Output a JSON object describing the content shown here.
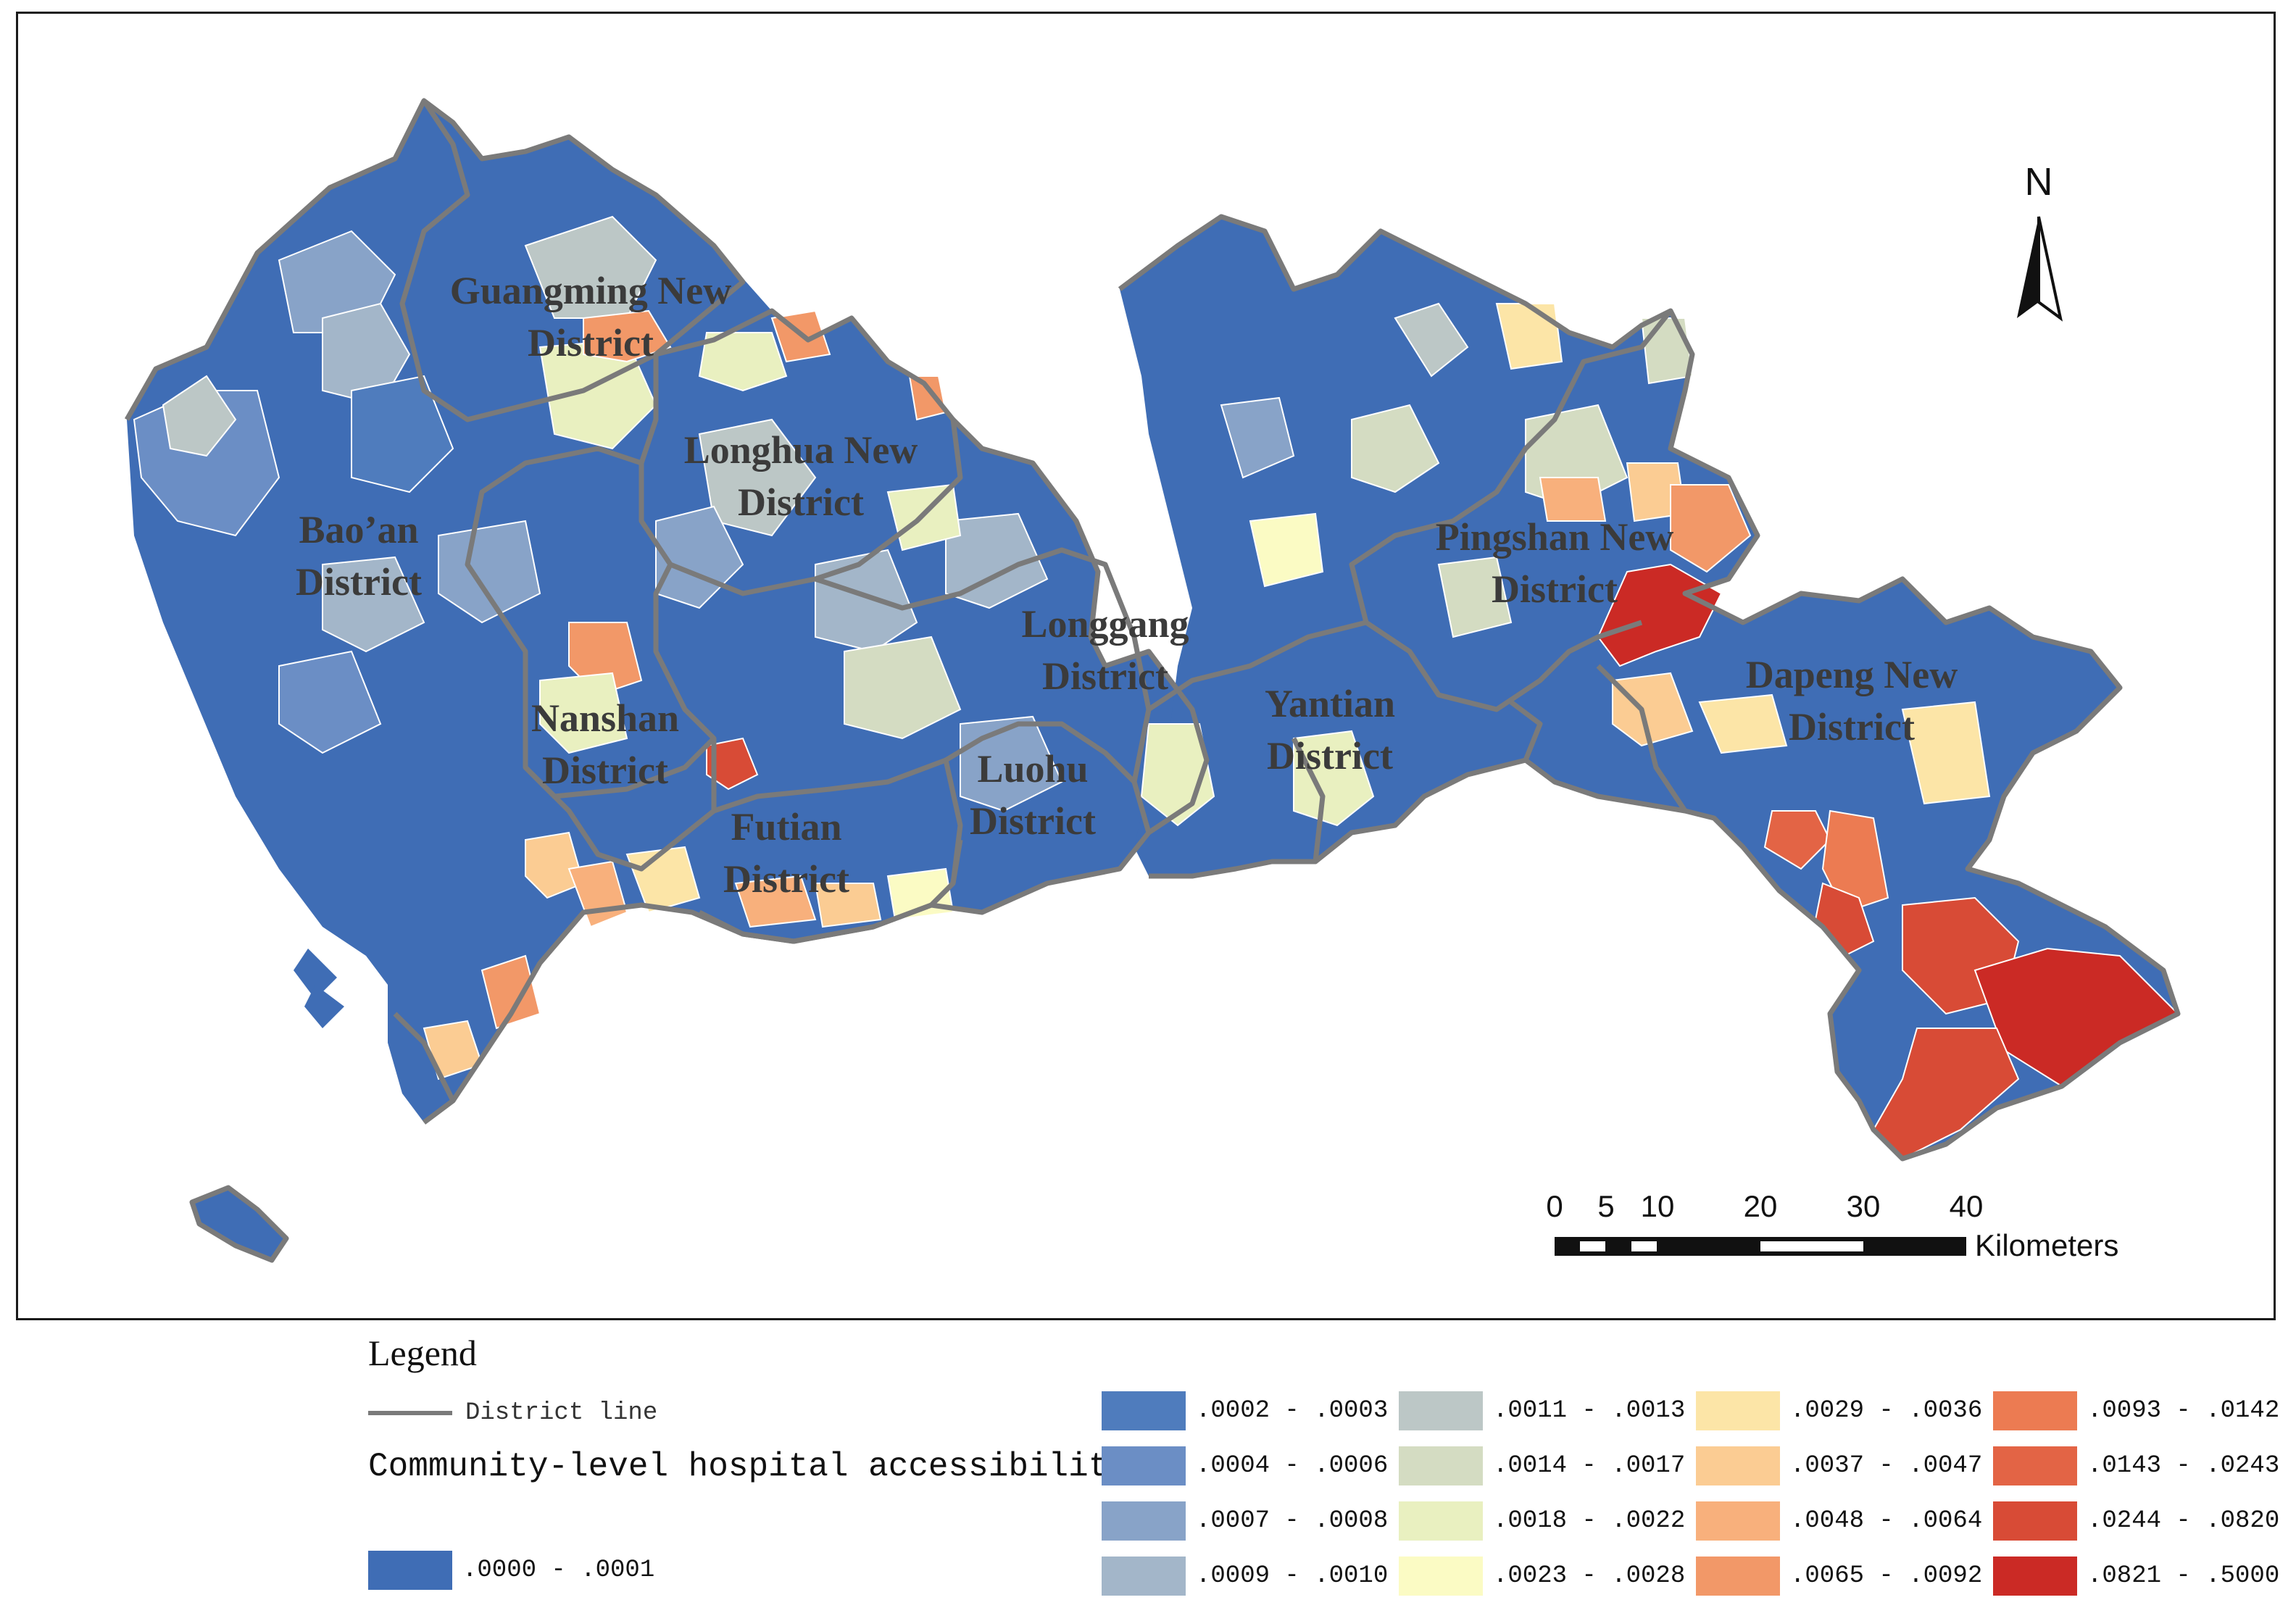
{
  "map": {
    "districts": [
      {
        "id": "guangming",
        "line1": "Guangming New",
        "line2": "District"
      },
      {
        "id": "longhua",
        "line1": "Longhua New",
        "line2": "District"
      },
      {
        "id": "baoan",
        "line1": "Bao’an",
        "line2": "District"
      },
      {
        "id": "pingshan",
        "line1": "Pingshan New",
        "line2": "District"
      },
      {
        "id": "longgang",
        "line1": "Longgang",
        "line2": "District"
      },
      {
        "id": "dapeng",
        "line1": "Dapeng New",
        "line2": "District"
      },
      {
        "id": "yantian",
        "line1": "Yantian",
        "line2": "District"
      },
      {
        "id": "nanshan",
        "line1": "Nanshan",
        "line2": "District"
      },
      {
        "id": "luohu",
        "line1": "Luohu",
        "line2": "District"
      },
      {
        "id": "futian",
        "line1": "Futian",
        "line2": "District"
      }
    ],
    "north_arrow": {
      "letter": "N"
    },
    "scale_bar": {
      "ticks": [
        "0",
        "5",
        "10",
        "20",
        "30",
        "40"
      ],
      "unit": "Kilometers"
    }
  },
  "legend": {
    "title": "Legend",
    "district_line_label": "District line",
    "accessibility_title": "Community-level hospital accessibility",
    "classes": [
      {
        "label": ".0000 - .0001",
        "color": "#3f6db5"
      },
      {
        "label": ".0002 - .0003",
        "color": "#4f7cbd"
      },
      {
        "label": ".0004 - .0006",
        "color": "#6b8ec5"
      },
      {
        "label": ".0007 - .0008",
        "color": "#88a3c8"
      },
      {
        "label": ".0009 - .0010",
        "color": "#a3b6c9"
      },
      {
        "label": ".0011 - .0013",
        "color": "#bcc7c6"
      },
      {
        "label": ".0014 - .0017",
        "color": "#d4dcc2"
      },
      {
        "label": ".0018 - .0022",
        "color": "#e9f0c0"
      },
      {
        "label": ".0023 - .0028",
        "color": "#fbfbc4"
      },
      {
        "label": ".0029 - .0036",
        "color": "#fce5a7"
      },
      {
        "label": ".0037 - .0047",
        "color": "#fbcc93"
      },
      {
        "label": ".0048 - .0064",
        "color": "#f8b07c"
      },
      {
        "label": ".0065 - .0092",
        "color": "#f29868"
      },
      {
        "label": ".0093 - .0142",
        "color": "#ec7b52"
      },
      {
        "label": ".0143 - .0243",
        "color": "#e36445"
      },
      {
        "label": ".0244 - .0820",
        "color": "#d84b36"
      },
      {
        "label": ".0821 - .5000",
        "color": "#cb2a25"
      }
    ]
  }
}
